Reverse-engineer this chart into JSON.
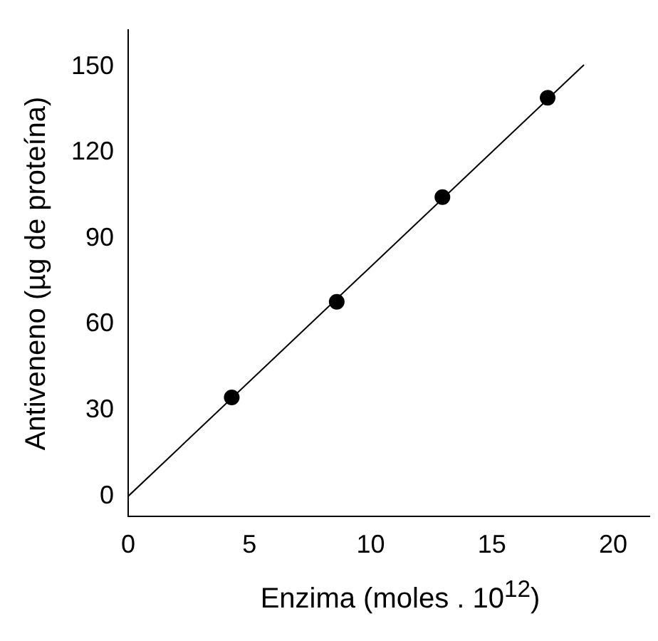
{
  "chart_data": {
    "type": "scatter",
    "xlabel": "Enzima (moles . 10$^{12}$)",
    "ylabel": "Antiveneno (µg de proteína)",
    "xlim": [
      0,
      21.5
    ],
    "xticks": [
      0,
      5,
      10,
      15,
      20
    ],
    "ylim": [
      -7,
      163
    ],
    "yticks": [
      0,
      30,
      60,
      90,
      120,
      150
    ],
    "grid": false,
    "legend": false,
    "marker": "circle",
    "series": [
      {
        "color": "#000000",
        "x": [
          4.27,
          8.6,
          12.96,
          17.3
        ],
        "values": [
          34.5,
          67.9,
          104.5,
          139.2
        ]
      },
      {
        "type": "line",
        "color": "#000000",
        "marker": "none",
        "line_style": "solid",
        "x": [
          0,
          18.8
        ],
        "values": [
          0,
          150.7
        ]
      }
    ]
  }
}
